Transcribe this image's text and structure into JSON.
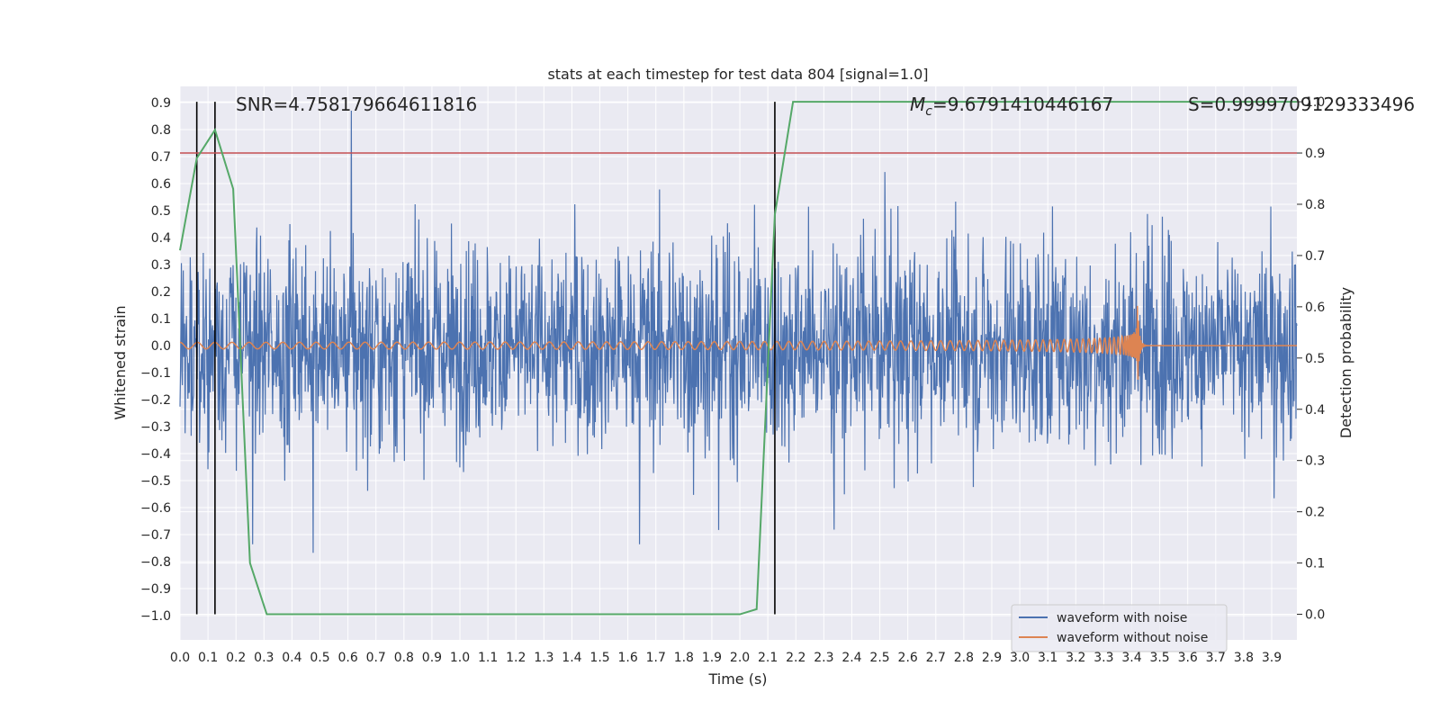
{
  "chart_data": {
    "type": "line",
    "title": "stats at each timestep for test data 804 [signal=1.0]",
    "xlabel": "Time (s)",
    "ylabel": "Whitened strain",
    "y2label": "Detection probability",
    "xlim": [
      0.0,
      3.99
    ],
    "ylim": [
      -1.09,
      0.96
    ],
    "y2lim": [
      -0.05,
      1.03
    ],
    "x_ticks": [
      0.0,
      0.1,
      0.2,
      0.3,
      0.4,
      0.5,
      0.6,
      0.7,
      0.8,
      0.9,
      1.0,
      1.1,
      1.2,
      1.3,
      1.4,
      1.5,
      1.6,
      1.7,
      1.8,
      1.9,
      2.0,
      2.1,
      2.2,
      2.3,
      2.4,
      2.5,
      2.6,
      2.7,
      2.8,
      2.9,
      3.0,
      3.1,
      3.2,
      3.3,
      3.4,
      3.5,
      3.6,
      3.7,
      3.8,
      3.9
    ],
    "x_tick_labels": [
      "0.0",
      "0.1",
      "0.2",
      "0.3",
      "0.4",
      "0.5",
      "0.6",
      "0.7",
      "0.8",
      "0.9",
      "1.0",
      "1.1",
      "1.2",
      "1.3",
      "1.4",
      "1.5",
      "1.6",
      "1.7",
      "1.8",
      "1.9",
      "2.0",
      "2.1",
      "2.2",
      "2.3",
      "2.4",
      "2.5",
      "2.6",
      "2.7",
      "2.8",
      "2.9",
      "3.0",
      "3.1",
      "3.2",
      "3.3",
      "3.4",
      "3.5",
      "3.6",
      "3.7",
      "3.8",
      "3.9"
    ],
    "y_ticks": [
      -1.0,
      -0.9,
      -0.8,
      -0.7,
      -0.6,
      -0.5,
      -0.4,
      -0.3,
      -0.2,
      -0.1,
      0.0,
      0.1,
      0.2,
      0.3,
      0.4,
      0.5,
      0.6,
      0.7,
      0.8,
      0.9
    ],
    "y_tick_labels": [
      "−1.0",
      "−0.9",
      "−0.8",
      "−0.7",
      "−0.6",
      "−0.5",
      "−0.4",
      "−0.3",
      "−0.2",
      "−0.1",
      "0.0",
      "0.1",
      "0.2",
      "0.3",
      "0.4",
      "0.5",
      "0.6",
      "0.7",
      "0.8",
      "0.9"
    ],
    "y2_ticks": [
      0.0,
      0.1,
      0.2,
      0.3,
      0.4,
      0.5,
      0.6,
      0.7,
      0.8,
      0.9,
      1.0
    ],
    "y2_tick_labels": [
      "0.0",
      "0.1",
      "0.2",
      "0.3",
      "0.4",
      "0.5",
      "0.6",
      "0.7",
      "0.8",
      "0.9",
      "1.0"
    ],
    "grid": true,
    "legend_position": "lower-right",
    "annotations": {
      "snr": "SNR=4.758179664611816",
      "mc_symbol": "M",
      "mc_sub": "c",
      "mc_value": "=9.6791410446167",
      "s": "S=0.9999709129333496"
    },
    "threshold": {
      "y2": 0.9,
      "color": "#c44e52"
    },
    "vertical_lines": [
      0.06,
      0.125,
      2.125
    ],
    "series": [
      {
        "name": "waveform with noise",
        "color": "#4c72b0",
        "axis": "left",
        "kind": "noise",
        "amplitude_envelope": 0.45,
        "peak_range": [
          -1.0,
          0.87
        ]
      },
      {
        "name": "waveform without noise",
        "color": "#dd8452",
        "axis": "left",
        "kind": "chirp",
        "start_amplitude": 0.012,
        "peak_amplitude": 0.19,
        "merger_time": 3.42,
        "end_time": 3.99
      },
      {
        "name": "detection probability",
        "color": "#55a868",
        "axis": "right",
        "x": [
          0.0,
          0.02,
          0.06,
          0.125,
          0.19,
          0.25,
          0.31,
          0.375,
          0.5,
          1.0,
          1.5,
          2.0,
          2.06,
          2.125,
          2.19,
          2.5,
          3.0,
          3.5,
          3.99
        ],
        "y": [
          0.71,
          0.77,
          0.89,
          0.945,
          0.83,
          0.1,
          0.0,
          0.0,
          0.0,
          0.0,
          0.0,
          0.0,
          0.01,
          0.78,
          1.0,
          1.0,
          1.0,
          1.0,
          1.0
        ]
      }
    ]
  }
}
